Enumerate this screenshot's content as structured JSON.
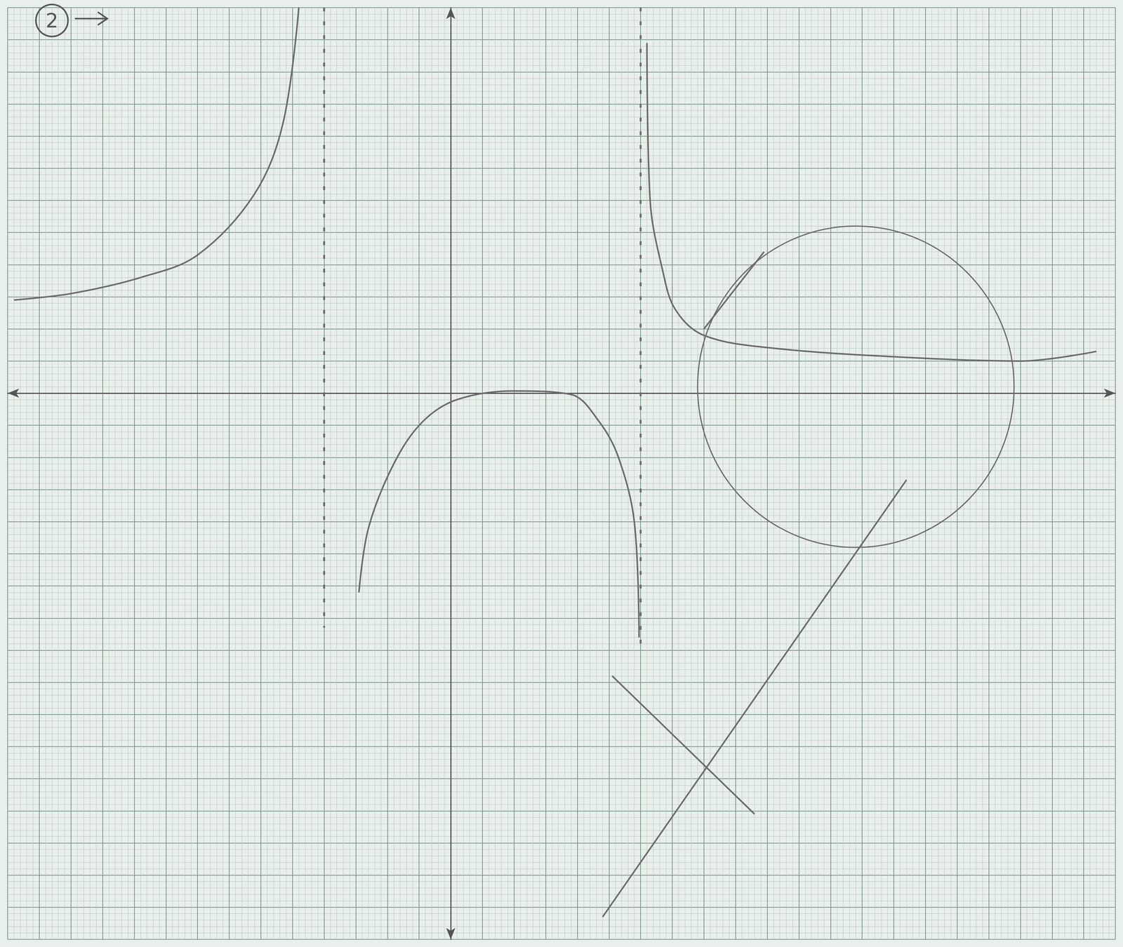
{
  "chart_data": {
    "type": "line",
    "xlim": [
      -14,
      21
    ],
    "ylim": [
      -17,
      12
    ],
    "xticks": [
      -14,
      -13,
      -12,
      -11,
      -10,
      -9,
      -8,
      -7,
      -6,
      -5,
      -4,
      -3,
      -2,
      -1,
      0,
      1,
      2,
      3,
      4,
      5,
      6,
      7,
      8,
      9,
      10,
      11,
      12,
      13,
      14,
      15,
      16,
      17,
      18,
      19,
      20,
      21
    ],
    "yticks": [
      -17,
      -16,
      -15,
      -14,
      -13,
      -12,
      -11,
      -10,
      -9,
      -8,
      -7,
      -6,
      -5,
      -4,
      -3,
      -2,
      -1,
      0,
      1,
      2,
      3,
      4,
      5,
      6,
      7,
      8,
      9,
      10,
      11,
      12
    ],
    "grid": true,
    "tick_labels": false,
    "color": "#6b6b6b",
    "annotations": [
      {
        "text": "2",
        "x": -12.6,
        "y": 11.6
      }
    ],
    "series": [
      {
        "type": "line",
        "line_style": "solid",
        "values": [
          [
            -13.8,
            2.9
          ],
          [
            -12,
            3.1
          ],
          [
            -9.8,
            3.6
          ],
          [
            -8,
            4.3
          ],
          [
            -6.2,
            6.2
          ],
          [
            -5.3,
            8.4
          ],
          [
            -4.8,
            12
          ]
        ]
      },
      {
        "type": "line",
        "line_style": "solid",
        "values": [
          [
            -2.9,
            -6.2
          ],
          [
            -2.6,
            -4.2
          ],
          [
            -1.8,
            -2.2
          ],
          [
            -0.9,
            -0.9
          ],
          [
            0.2,
            -0.2
          ],
          [
            2,
            0.07
          ],
          [
            3.8,
            -0.04
          ],
          [
            4.7,
            -0.9
          ],
          [
            5.3,
            -2
          ],
          [
            5.8,
            -4
          ],
          [
            5.95,
            -7.6
          ]
        ]
      },
      {
        "type": "line",
        "line_style": "solid",
        "values": [
          [
            6.2,
            10.9
          ],
          [
            6.3,
            6
          ],
          [
            6.7,
            3.8
          ],
          [
            7.1,
            2.6
          ],
          [
            8,
            1.8
          ],
          [
            10.2,
            1.4
          ],
          [
            14.7,
            1.1
          ],
          [
            18,
            1
          ],
          [
            20.4,
            1.3
          ]
        ]
      },
      {
        "type": "line",
        "line_style": "dashed",
        "values": [
          [
            -4,
            12
          ],
          [
            -4,
            -7.3
          ]
        ]
      },
      {
        "type": "line",
        "line_style": "dashed",
        "values": [
          [
            6,
            12
          ],
          [
            6,
            -7.8
          ]
        ]
      },
      {
        "type": "line",
        "line_style": "solid",
        "values": [
          [
            8,
            2
          ],
          [
            9.9,
            4.4
          ]
        ]
      },
      {
        "type": "line",
        "line_style": "solid",
        "values": [
          [
            4.8,
            -16.3
          ],
          [
            14.4,
            -2.7
          ]
        ]
      },
      {
        "type": "line",
        "line_style": "solid",
        "values": [
          [
            5.1,
            -8.8
          ],
          [
            9.6,
            -13.1
          ]
        ]
      },
      {
        "type": "circle",
        "center": [
          12.8,
          0.2
        ],
        "radius": 5
      }
    ]
  }
}
